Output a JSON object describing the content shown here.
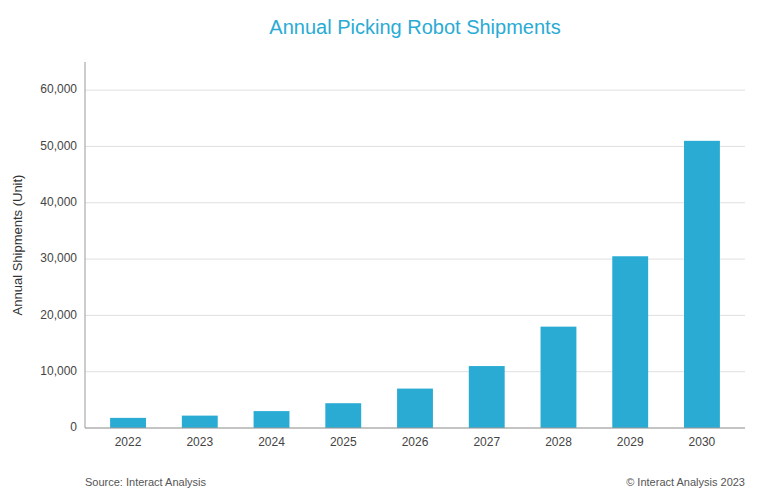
{
  "chart_data": {
    "type": "bar",
    "title": "Annual Picking Robot Shipments",
    "ylabel": "Annual Shipments (Unit)",
    "categories": [
      2022,
      2023,
      2024,
      2025,
      2026,
      2027,
      2028,
      2029,
      2030
    ],
    "values": [
      1800,
      2200,
      3000,
      4400,
      7000,
      11000,
      18000,
      30500,
      51000
    ],
    "color": "#29ABD4",
    "ylim": [
      0,
      65000
    ],
    "yticks": [
      0,
      {
        "value": 10000,
        "label": "10,000"
      },
      {
        "value": 20000,
        "label": "20,000"
      },
      {
        "value": 30000,
        "label": "30,000"
      },
      {
        "value": 40000,
        "label": "40,000"
      },
      {
        "value": 50000,
        "label": "50,000"
      },
      {
        "value": 60000,
        "label": "60,000"
      }
    ],
    "grid": true,
    "annotations": [
      "Source: Interact Analysis",
      "© Interact Analysis 2023"
    ]
  }
}
